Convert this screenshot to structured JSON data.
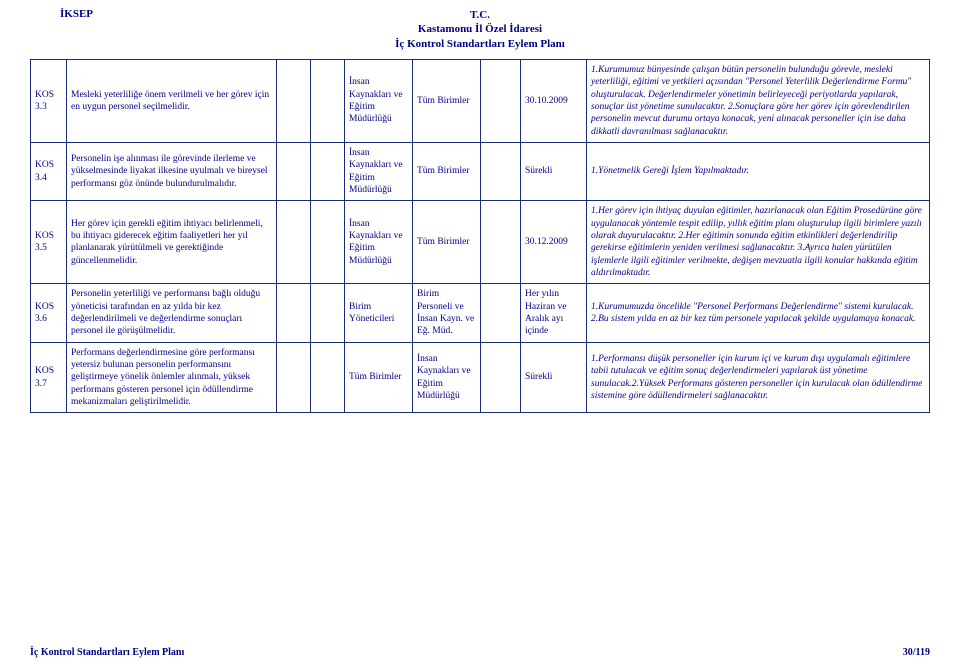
{
  "header": {
    "project": "İKSEP",
    "line1": "T.C.",
    "line2": "Kastamonu İl Özel İdaresi",
    "line3": "İç Kontrol Standartları Eylem Planı"
  },
  "rows": [
    {
      "code": "KOS 3.3",
      "desc": "Mesleki yeterliliğe önem verilmeli ve her görev için en uygun personel seçilmelidir.",
      "unit1": "İnsan Kaynakları ve Eğitim Müdürlüğü",
      "unit2": "Tüm Birimler",
      "date": "30.10.2009",
      "notes": "1.Kurumumuz bünyesinde çalışan bütün personelin bulunduğu görevle, mesleki yeterliliği, eğitimi ve yetkileri açısından \"Personel Yeterlilik Değerlendirme Formu\" oluşturulacak. Değerlendirmeler yönetimin belirleyeceği periyotlarda yapılarak, sonuçlar üst yönetime sunulacaktır.\n2.Sonuçlara göre her görev için görevlendirilen personelin mevcut durumu ortaya konacak, yeni alınacak personeller için ise daha dikkatli davranılması sağlanacaktır."
    },
    {
      "code": "KOS 3.4",
      "desc": "Personelin işe alınması ile görevinde ilerleme ve yükselmesinde liyakat ilkesine uyulmalı ve bireysel performansı göz önünde bulundurulmalıdır.",
      "unit1": "İnsan Kaynakları ve Eğitim Müdürlüğü",
      "unit2": "Tüm Birimler",
      "date": "Sürekli",
      "notes": "1.Yönetmelik Gereği İşlem Yapılmaktadır."
    },
    {
      "code": "KOS 3.5",
      "desc": "Her görev için gerekli eğitim ihtiyacı belirlenmeli, bu ihtiyacı giderecek eğitim faaliyetleri her yıl planlanarak yürütülmeli ve gerektiğinde güncellenmelidir.",
      "unit1": "İnsan Kaynakları ve Eğitim Müdürlüğü",
      "unit2": "Tüm Birimler",
      "date": "30.12.2009",
      "notes": "1.Her görev için ihtiyaç duyulan eğitimler, hazırlanacak olan Eğitim Prosedürüne göre uygulanacak yöntemle tespit edilip, yıllık eğitim planı oluşturulup ilgili birimlere yazılı olarak duyurulacaktır.\n2.Her eğitimin sonunda eğitim etkinlikleri değerlendirilip gerekirse eğitimlerin yeniden verilmesi sağlanacaktır.\n3.Ayrıca halen yürütülen işlemlerle ilgili eğitimler verilmekte, değişen mevzuatla ilgili konular hakkında eğitim aldırılmaktadır."
    },
    {
      "code": "KOS 3.6",
      "desc": "Personelin yeterliliği ve performansı bağlı olduğu yöneticisi tarafından en az yılda bir kez değerlendirilmeli ve değerlendirme sonuçları personel ile görüşülmelidir.",
      "unit1": "Birim Yöneticileri",
      "unit2": "Birim Personeli ve İnsan Kayn. ve Eğ. Müd.",
      "date": "Her yılın Haziran ve Aralık ayı içinde",
      "notes": "1.Kurumumuzda öncelikle \"Personel Performans Değerlendirme\" sistemi kurulacak.\n2.Bu sistem yılda en az bir kez tüm personele yapılacak şekilde uygulamaya konacak."
    },
    {
      "code": "KOS 3.7",
      "desc": "Performans değerlendirmesine göre performansı yetersiz bulunan personelin performansını geliştirmeye yönelik önlemler alınmalı, yüksek performans gösteren personel için ödüllendirme mekanizmaları geliştirilmelidir.",
      "unit1": "Tüm Birimler",
      "unit2": "İnsan Kaynakları ve Eğitim Müdürlüğü",
      "date": "Sürekli",
      "notes": "1.Performansı düşük personeller için kurum içi ve kurum dışı uygulamalı eğitimlere tabii tutulacak ve eğitim sonuç değerlendirmeleri yapılarak üst yönetime sunulacak.2.Yüksek Performans gösteren personeller için kurulacak olan ödüllendirme sistemine göre ödüllendirmeleri sağlanacaktır."
    }
  ],
  "footer": {
    "left": "İç Kontrol Standartları Eylem Planı",
    "right": "30/119"
  },
  "colors": {
    "text": "#000080",
    "border": "#1a2a7a",
    "background": "#ffffff"
  }
}
